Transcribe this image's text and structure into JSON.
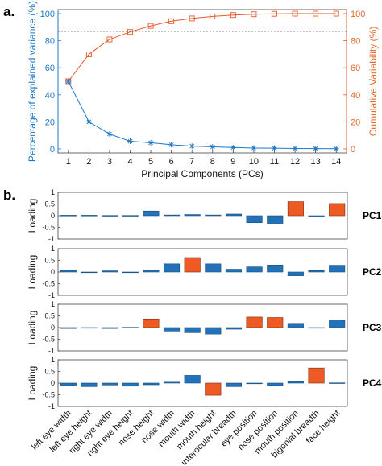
{
  "panel_labels": {
    "a": "a.",
    "b": "b."
  },
  "colors": {
    "blue": "#1f77c4",
    "orange": "#e8592a",
    "orange_text": "#e06a2c",
    "bar_blue": "#2172b8",
    "bar_orange": "#ee5a24"
  },
  "chart_data": [
    {
      "type": "line",
      "xlabel": "Principal Components (PCs)",
      "ylabel_left": "Percentage of explained variance (%)",
      "ylabel_right": "Cumulative Variability (%)",
      "x": [
        1,
        2,
        3,
        4,
        5,
        6,
        7,
        8,
        9,
        10,
        11,
        12,
        13,
        14
      ],
      "xlim": [
        0.5,
        14.5
      ],
      "ylim_left": [
        -3,
        103
      ],
      "ylim_right": [
        -3,
        103
      ],
      "y_ticks": [
        0,
        20,
        40,
        60,
        80,
        100
      ],
      "threshold_line": 87,
      "grid": false,
      "series": [
        {
          "axis": "left",
          "marker": "asterisk",
          "values": [
            50,
            20,
            11,
            5.6,
            4.5,
            3,
            2,
            1.5,
            1,
            0.6,
            0.5,
            0.3,
            0.2,
            0.1
          ]
        },
        {
          "axis": "right",
          "marker": "square",
          "values": [
            50,
            70,
            81,
            86.5,
            91,
            94.5,
            96.5,
            98,
            99,
            99.6,
            99.9,
            100,
            100,
            100
          ]
        }
      ]
    },
    {
      "type": "bar",
      "ylabel": "Loading",
      "ylim": [
        -1,
        1
      ],
      "y_ticks": [
        "1",
        "0.5",
        "0",
        "-0.5",
        "-1"
      ],
      "categories": [
        "left eye width",
        "left eye height",
        "right eye width",
        "right eye height",
        "nose height",
        "nose width",
        "mouth width",
        "mouth height",
        "interocular breadth",
        "eye position",
        "nose position",
        "mouth position",
        "bigonial breadth",
        "face height"
      ],
      "series": [
        {
          "name": "PC1",
          "values": [
            0.02,
            0.02,
            0.01,
            0.01,
            0.2,
            0.03,
            0.05,
            0.03,
            0.07,
            -0.3,
            -0.33,
            0.6,
            -0.05,
            0.52
          ],
          "highlight": [
            11,
            13
          ]
        },
        {
          "name": "PC2",
          "values": [
            0.07,
            0.0,
            0.05,
            -0.02,
            0.07,
            0.35,
            0.62,
            0.35,
            0.12,
            0.22,
            0.3,
            -0.16,
            0.06,
            0.29
          ],
          "highlight": [
            6
          ]
        },
        {
          "name": "PC3",
          "values": [
            -0.04,
            0.0,
            -0.04,
            0.01,
            0.37,
            -0.15,
            -0.22,
            -0.28,
            -0.07,
            0.45,
            0.43,
            0.18,
            -0.02,
            0.33
          ],
          "highlight": [
            4,
            9,
            10
          ]
        },
        {
          "name": "PC4",
          "values": [
            -0.1,
            -0.15,
            -0.08,
            -0.13,
            -0.07,
            0.04,
            0.33,
            -0.52,
            -0.15,
            -0.01,
            -0.1,
            0.07,
            0.65,
            0.01
          ],
          "highlight": [
            7,
            12
          ]
        }
      ]
    }
  ]
}
